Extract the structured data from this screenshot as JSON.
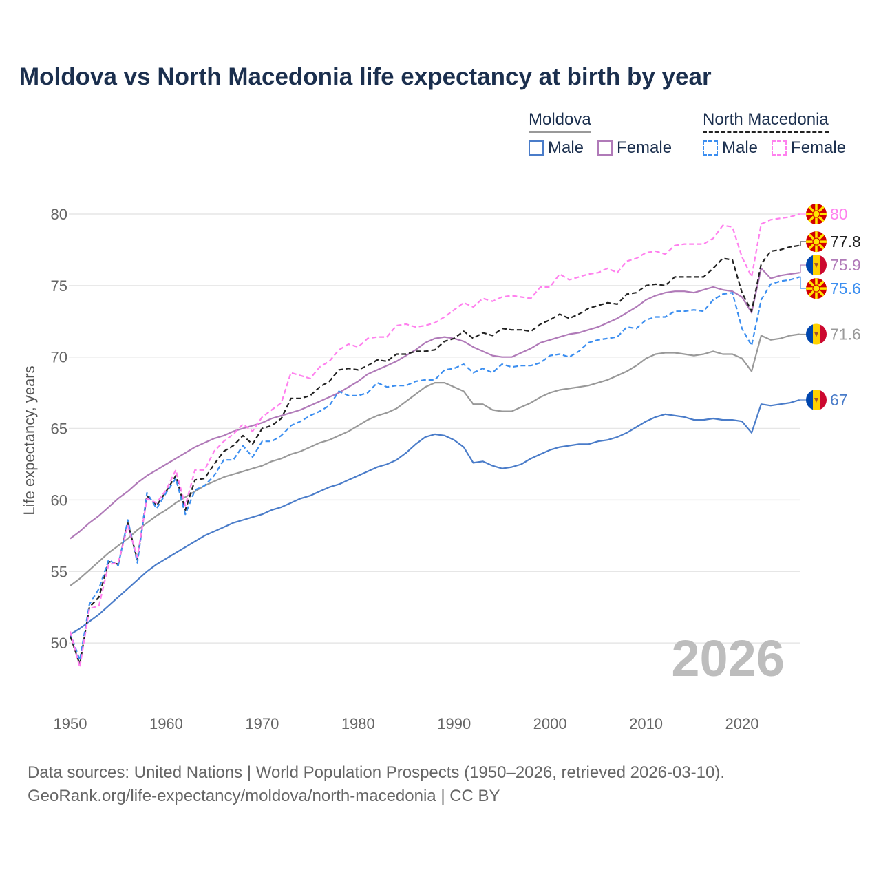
{
  "chart_data": {
    "type": "line",
    "title": "Moldova vs North Macedonia life expectancy at birth by year",
    "xlabel": "",
    "ylabel": "Life expectancy, years",
    "xlim": [
      1950,
      2026
    ],
    "ylim": [
      46,
      82
    ],
    "x_ticks": [
      "1950",
      "1960",
      "1970",
      "1980",
      "1990",
      "2000",
      "2010",
      "2020"
    ],
    "y_ticks": [
      "50",
      "55",
      "60",
      "65",
      "70",
      "75",
      "80"
    ],
    "grid": true,
    "watermark_year": "2026",
    "legend": {
      "placement": "top-right",
      "groups": [
        {
          "name": "Moldova",
          "items": [
            "Male",
            "Female"
          ]
        },
        {
          "name": "North Macedonia",
          "items": [
            "Male",
            "Female"
          ]
        }
      ]
    },
    "x_start": 1950,
    "series": [
      {
        "name": "Moldova",
        "country": "moldova",
        "dashed": false,
        "color": "#999999",
        "end_label": "71.6",
        "values": [
          54.0,
          54.5,
          55.1,
          55.7,
          56.3,
          56.8,
          57.3,
          57.9,
          58.4,
          58.9,
          59.3,
          59.8,
          60.2,
          60.6,
          61.0,
          61.3,
          61.6,
          61.8,
          62.0,
          62.2,
          62.4,
          62.7,
          62.9,
          63.2,
          63.4,
          63.7,
          64.0,
          64.2,
          64.5,
          64.8,
          65.2,
          65.6,
          65.9,
          66.1,
          66.4,
          66.9,
          67.4,
          67.9,
          68.2,
          68.2,
          67.9,
          67.6,
          66.7,
          66.7,
          66.3,
          66.2,
          66.2,
          66.5,
          66.8,
          67.2,
          67.5,
          67.7,
          67.8,
          67.9,
          68.0,
          68.2,
          68.4,
          68.7,
          69.0,
          69.4,
          69.9,
          70.2,
          70.3,
          70.3,
          70.2,
          70.1,
          70.2,
          70.4,
          70.2,
          70.2,
          69.9,
          69.0,
          71.5,
          71.2,
          71.3,
          71.5,
          71.6
        ]
      },
      {
        "name": "Moldova Male",
        "country": "moldova",
        "dashed": false,
        "color": "#4a7cc9",
        "end_label": "67",
        "values": [
          50.6,
          51.0,
          51.5,
          52.0,
          52.6,
          53.2,
          53.8,
          54.4,
          55.0,
          55.5,
          55.9,
          56.3,
          56.7,
          57.1,
          57.5,
          57.8,
          58.1,
          58.4,
          58.6,
          58.8,
          59.0,
          59.3,
          59.5,
          59.8,
          60.1,
          60.3,
          60.6,
          60.9,
          61.1,
          61.4,
          61.7,
          62.0,
          62.3,
          62.5,
          62.8,
          63.3,
          63.9,
          64.4,
          64.6,
          64.5,
          64.2,
          63.7,
          62.6,
          62.7,
          62.4,
          62.2,
          62.3,
          62.5,
          62.9,
          63.2,
          63.5,
          63.7,
          63.8,
          63.9,
          63.9,
          64.1,
          64.2,
          64.4,
          64.7,
          65.1,
          65.5,
          65.8,
          66.0,
          65.9,
          65.8,
          65.6,
          65.6,
          65.7,
          65.6,
          65.6,
          65.5,
          64.7,
          66.7,
          66.6,
          66.7,
          66.8,
          67.0
        ]
      },
      {
        "name": "Moldova Female",
        "country": "moldova",
        "dashed": false,
        "color": "#b07ab8",
        "end_label": "75.9",
        "values": [
          57.3,
          57.8,
          58.4,
          58.9,
          59.5,
          60.1,
          60.6,
          61.2,
          61.7,
          62.1,
          62.5,
          62.9,
          63.3,
          63.7,
          64.0,
          64.3,
          64.5,
          64.8,
          65.0,
          65.2,
          65.4,
          65.7,
          65.9,
          66.1,
          66.3,
          66.6,
          66.9,
          67.2,
          67.5,
          67.9,
          68.3,
          68.8,
          69.1,
          69.4,
          69.7,
          70.1,
          70.5,
          71.0,
          71.3,
          71.4,
          71.3,
          71.1,
          70.7,
          70.4,
          70.1,
          70.0,
          70.0,
          70.3,
          70.6,
          71.0,
          71.2,
          71.4,
          71.6,
          71.7,
          71.9,
          72.1,
          72.4,
          72.7,
          73.1,
          73.5,
          74.0,
          74.3,
          74.5,
          74.6,
          74.6,
          74.5,
          74.7,
          74.9,
          74.7,
          74.6,
          74.2,
          73.1,
          76.2,
          75.5,
          75.7,
          75.8,
          75.9
        ]
      },
      {
        "name": "North Macedonia",
        "country": "north-macedonia",
        "dashed": true,
        "color": "#222222",
        "end_label": "77.8",
        "values": [
          50.5,
          48.5,
          52.5,
          53.2,
          55.7,
          55.5,
          58.4,
          55.8,
          60.3,
          59.6,
          60.6,
          61.7,
          59.3,
          61.4,
          61.5,
          62.5,
          63.4,
          63.8,
          64.5,
          63.9,
          65.0,
          65.2,
          65.7,
          67.1,
          67.1,
          67.3,
          67.9,
          68.3,
          69.1,
          69.2,
          69.1,
          69.4,
          69.8,
          69.7,
          70.2,
          70.2,
          70.4,
          70.4,
          70.5,
          71.1,
          71.3,
          71.8,
          71.3,
          71.7,
          71.5,
          72.0,
          71.9,
          71.9,
          71.8,
          72.3,
          72.6,
          73.0,
          72.7,
          73.0,
          73.4,
          73.6,
          73.8,
          73.7,
          74.4,
          74.5,
          75.0,
          75.1,
          75.0,
          75.6,
          75.6,
          75.6,
          75.6,
          76.2,
          76.9,
          76.8,
          74.5,
          73.2,
          76.5,
          77.4,
          77.5,
          77.7,
          77.8
        ]
      },
      {
        "name": "North Macedonia Male",
        "country": "north-macedonia",
        "dashed": true,
        "color": "#3b8ef0",
        "end_label": "75.6",
        "values": [
          50.7,
          48.8,
          52.7,
          53.8,
          55.8,
          55.4,
          58.6,
          55.6,
          60.5,
          59.4,
          60.5,
          61.5,
          59.0,
          60.7,
          61.0,
          61.7,
          62.8,
          62.8,
          63.8,
          63.0,
          64.1,
          64.1,
          64.5,
          65.2,
          65.5,
          65.9,
          66.2,
          66.6,
          67.6,
          67.3,
          67.3,
          67.5,
          68.2,
          67.9,
          68.0,
          68.0,
          68.3,
          68.4,
          68.4,
          69.1,
          69.2,
          69.5,
          68.9,
          69.2,
          68.9,
          69.5,
          69.3,
          69.4,
          69.4,
          69.6,
          70.1,
          70.2,
          70.0,
          70.4,
          71.0,
          71.2,
          71.3,
          71.4,
          72.1,
          72.0,
          72.6,
          72.8,
          72.8,
          73.2,
          73.2,
          73.3,
          73.2,
          74.0,
          74.4,
          74.5,
          72.0,
          70.8,
          74.0,
          75.1,
          75.3,
          75.4,
          75.6
        ]
      },
      {
        "name": "North Macedonia Female",
        "country": "north-macedonia",
        "dashed": true,
        "color": "#ff80ee",
        "end_label": "80",
        "values": [
          50.8,
          48.3,
          52.4,
          52.6,
          55.5,
          55.6,
          58.2,
          56.0,
          60.1,
          59.8,
          60.7,
          62.1,
          59.6,
          62.1,
          62.1,
          63.4,
          64.1,
          64.6,
          65.3,
          64.8,
          65.8,
          66.3,
          66.8,
          68.9,
          68.7,
          68.5,
          69.3,
          69.7,
          70.5,
          70.9,
          70.7,
          71.3,
          71.4,
          71.4,
          72.2,
          72.3,
          72.1,
          72.2,
          72.4,
          72.8,
          73.3,
          73.8,
          73.5,
          74.1,
          73.9,
          74.2,
          74.3,
          74.2,
          74.1,
          74.9,
          74.9,
          75.8,
          75.4,
          75.6,
          75.8,
          75.9,
          76.2,
          75.9,
          76.7,
          76.9,
          77.3,
          77.4,
          77.2,
          77.8,
          77.9,
          77.9,
          77.9,
          78.3,
          79.2,
          79.1,
          77.0,
          75.6,
          79.3,
          79.6,
          79.7,
          79.8,
          80.0
        ]
      }
    ]
  },
  "legend": {
    "moldova": "Moldova",
    "north_macedonia": "North Macedonia",
    "male": "Male",
    "female": "Female"
  },
  "footer": {
    "line1": "Data sources: United Nations | World Population Prospects (1950–2026, retrieved 2026-03-10).",
    "line2": "GeoRank.org/life-expectancy/moldova/north-macedonia | CC BY"
  }
}
